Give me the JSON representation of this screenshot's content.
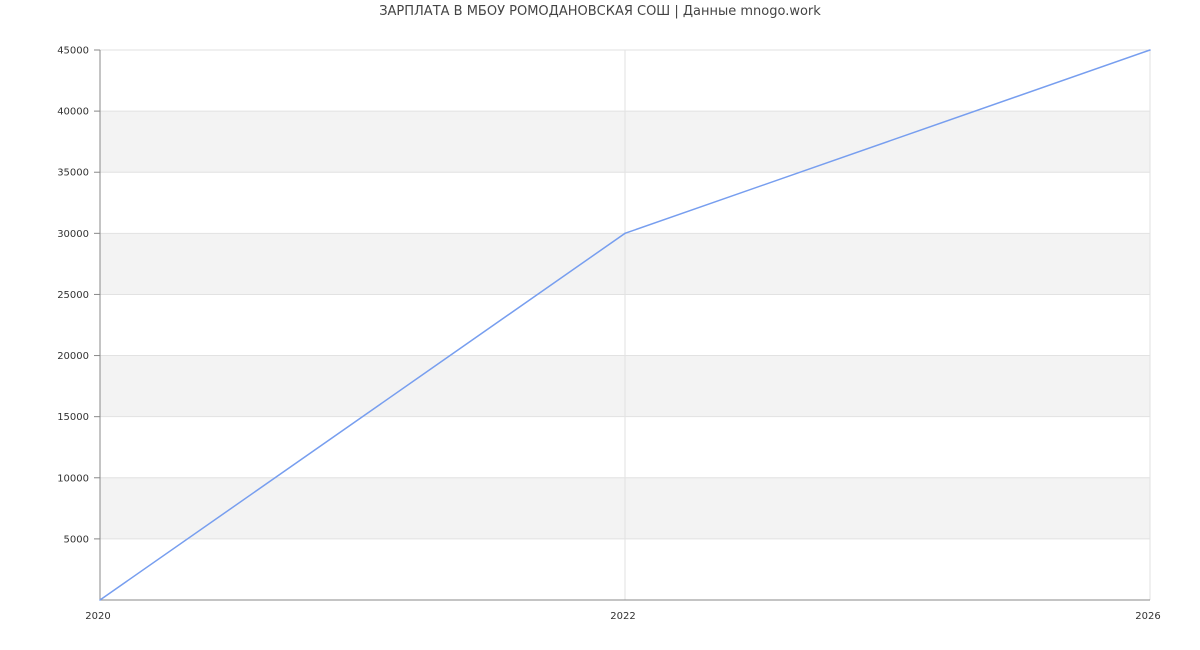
{
  "chart_data": {
    "type": "line",
    "title": "ЗАРПЛАТА В МБОУ РОМОДАНОВСКАЯ СОШ | Данные mnogo.work",
    "categories": [
      "2020",
      "2022",
      "2026"
    ],
    "values": [
      0,
      30000,
      45000
    ],
    "ylim": [
      0,
      45000
    ],
    "yticks": [
      5000,
      10000,
      15000,
      20000,
      25000,
      30000,
      35000,
      40000,
      45000
    ],
    "grid": true,
    "legend": "none",
    "line_color": "#779eef",
    "band_color": "#f3f3f3"
  }
}
